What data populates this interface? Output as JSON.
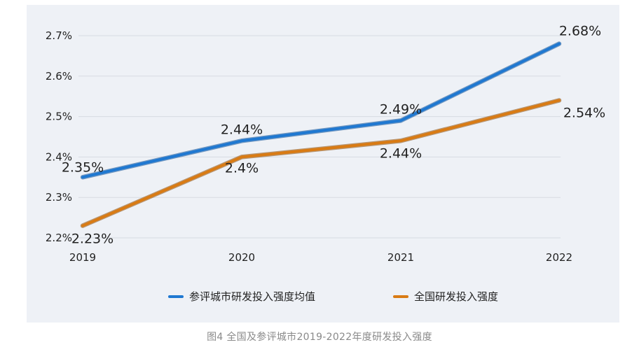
{
  "chart_data": {
    "type": "line",
    "x": [
      "2019",
      "2020",
      "2021",
      "2022"
    ],
    "ylim": [
      2.2,
      2.7
    ],
    "yticks": [
      "2.2%",
      "2.3%",
      "2.4%",
      "2.5%",
      "2.6%",
      "2.7%"
    ],
    "grid": true,
    "legend_position": "bottom",
    "series": [
      {
        "name": "参评城市研发投入强度均值",
        "values": [
          2.35,
          2.44,
          2.49,
          2.68
        ],
        "labels": [
          "2.35%",
          "2.44%",
          "2.49%",
          "2.68%"
        ],
        "color": "#1f78d1"
      },
      {
        "name": "全国研发投入强度",
        "values": [
          2.23,
          2.4,
          2.44,
          2.54
        ],
        "labels": [
          "2.23%",
          "2.4%",
          "2.44%",
          "2.54%"
        ],
        "color": "#d97b14"
      }
    ]
  },
  "caption": "图4 全国及参评城市2019-2022年度研发投入强度"
}
